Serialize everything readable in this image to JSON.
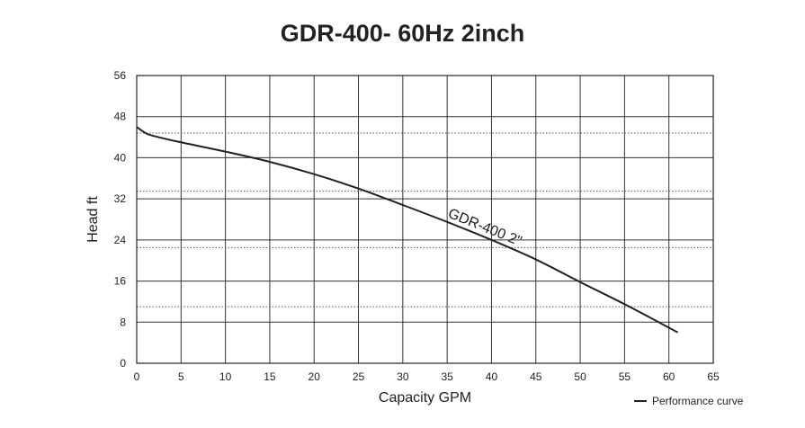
{
  "chart_data": {
    "type": "line",
    "title": "GDR-400- 60Hz 2inch",
    "xlabel": "Capacity GPM",
    "ylabel": "Head ft",
    "xlim": [
      0,
      65
    ],
    "ylim": [
      0,
      56
    ],
    "xticks": [
      0,
      5,
      10,
      15,
      20,
      25,
      30,
      35,
      40,
      45,
      50,
      55,
      60,
      65
    ],
    "yticks": [
      0,
      8,
      16,
      24,
      32,
      40,
      48,
      56
    ],
    "dotted_reference_lines": [
      11,
      22.5,
      33.5,
      44.8
    ],
    "grid": true,
    "series": [
      {
        "name": "GDR-400 2\"",
        "x": [
          0,
          1,
          2,
          5,
          10,
          15,
          20,
          25,
          30,
          35,
          40,
          45,
          50,
          55,
          61
        ],
        "y": [
          46,
          44.8,
          44.2,
          43,
          41.2,
          39.2,
          36.8,
          34,
          30.8,
          27.5,
          24,
          20.2,
          15.8,
          11.5,
          6
        ]
      }
    ],
    "curve_label": "GDR-400 2\"",
    "legend": {
      "label": "Performance curve",
      "position": "bottom-right"
    },
    "line_color": "#222222"
  }
}
